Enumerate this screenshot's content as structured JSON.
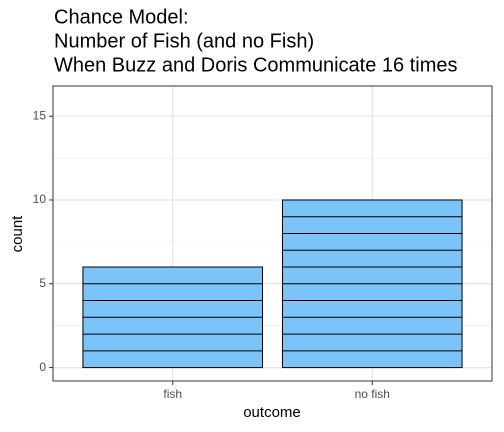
{
  "chart_data": {
    "type": "bar",
    "title": [
      "Chance Model:",
      "Number of Fish (and no Fish)",
      "When Buzz and Doris Communicate 16 times"
    ],
    "x_label": "outcome",
    "y_label": "count",
    "categories": [
      "fish",
      "no fish"
    ],
    "values": [
      6,
      10
    ],
    "color": "#7cc3f8",
    "ylim": [
      -0.8,
      16.8
    ],
    "yticks": [
      0,
      5,
      10,
      15
    ],
    "grid": true
  }
}
